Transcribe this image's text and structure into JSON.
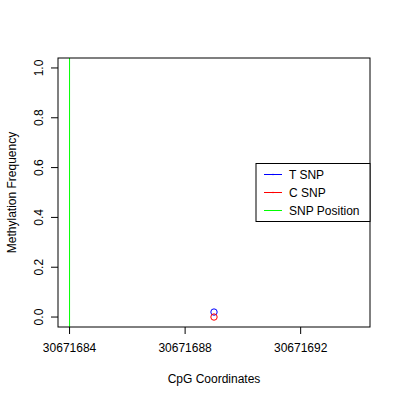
{
  "chart_data": {
    "type": "scatter",
    "x_label": "CpG Coordinates",
    "y_label": "Methylation Frequency",
    "xlim": [
      30671683.6,
      30671694.4
    ],
    "xticks": [
      30671684,
      30671688,
      30671692
    ],
    "ylim": [
      -0.04,
      1.04
    ],
    "yticks": [
      {
        "value": 0,
        "label": "0.0"
      },
      0.2,
      0.4,
      0.6,
      0.8,
      {
        "value": 1,
        "label": "1.0"
      }
    ],
    "legend": "right",
    "series": [
      {
        "name": "T SNP",
        "color": "#0000ff",
        "marker": "circle",
        "x": [
          30671689
        ],
        "values": [
          0.02
        ]
      },
      {
        "name": "C SNP",
        "color": "#ff0000",
        "marker": "circle",
        "x": [
          30671689
        ],
        "values": [
          0.0
        ]
      },
      {
        "name": "SNP Position",
        "color": "#00ff00",
        "type": "vline",
        "x": [
          30671684
        ]
      }
    ]
  }
}
